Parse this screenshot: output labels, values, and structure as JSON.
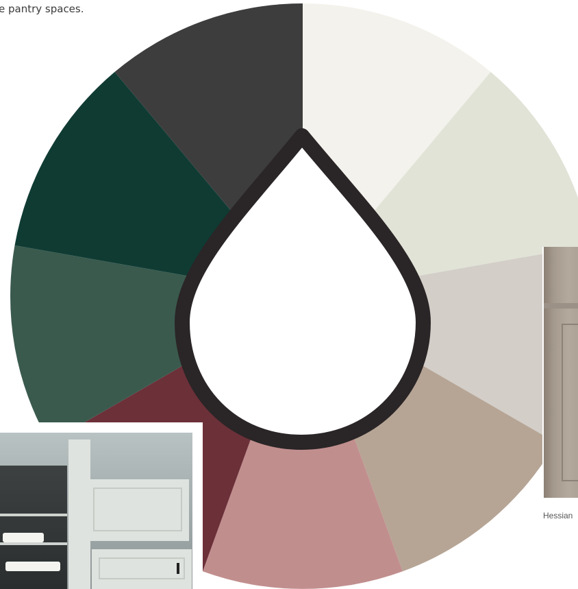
{
  "intro": {
    "text": "e pantry spaces."
  },
  "colors": {
    "ring": "#2a2526",
    "drop_fill": "#ffffff",
    "segments": [
      "#f3f2ec",
      "#e1e3d7",
      "#d3cec8",
      "#b6a595",
      "#c18e8e",
      "#6c3039",
      "#3a5a4e",
      "#0f3b33",
      "#3d3d3d"
    ]
  },
  "captions": {
    "right_photo": "Hessian"
  }
}
